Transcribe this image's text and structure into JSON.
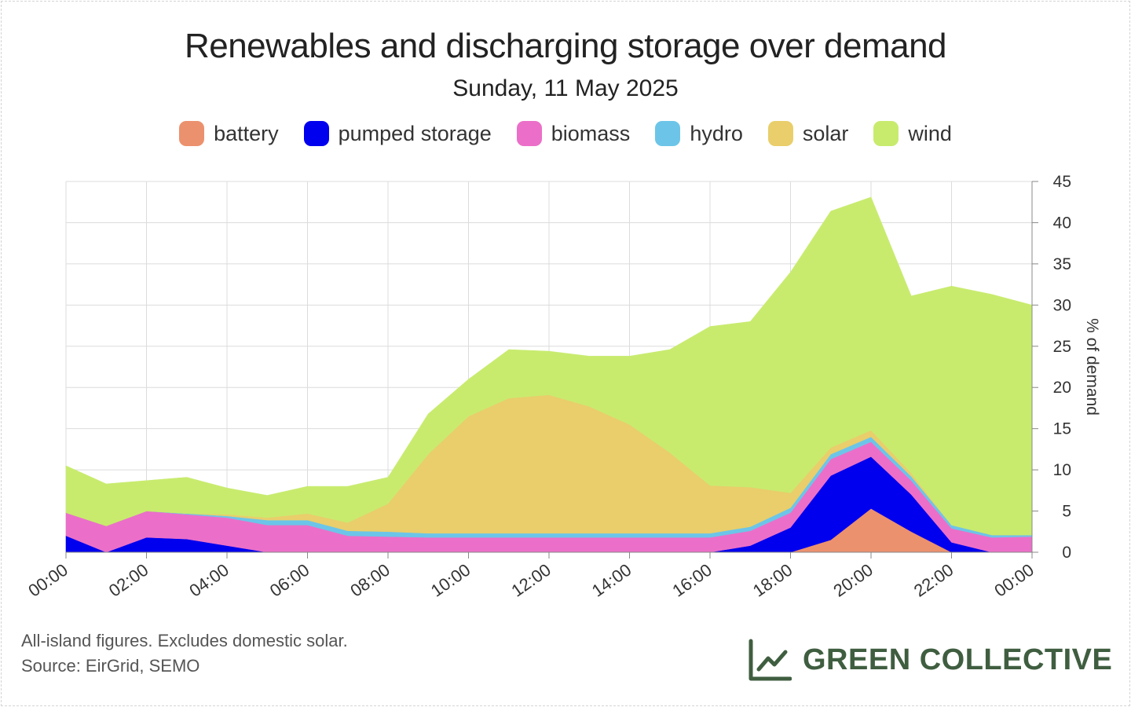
{
  "title": "Renewables and discharging storage over demand",
  "subtitle": "Sunday, 11 May 2025",
  "footnote_line1": "All-island figures. Excludes domestic solar.",
  "footnote_line2": "Source: EirGrid, SEMO",
  "brand": "GREEN COLLECTIVE",
  "chart_data": {
    "type": "area",
    "stacked": true,
    "title": "Renewables and discharging storage over demand",
    "subtitle": "Sunday, 11 May 2025",
    "xlabel": "",
    "ylabel": "% of demand",
    "y_axis_position": "right",
    "ylim": [
      0,
      45
    ],
    "y_ticks": [
      "0",
      "5",
      "10",
      "15",
      "20",
      "25",
      "30",
      "35",
      "40",
      "45"
    ],
    "x_ticks": [
      "00:00",
      "02:00",
      "04:00",
      "06:00",
      "08:00",
      "10:00",
      "12:00",
      "14:00",
      "16:00",
      "18:00",
      "20:00",
      "22:00",
      "00:00"
    ],
    "grid": true,
    "legend_position": "top",
    "x": [
      "00:00",
      "01:00",
      "02:00",
      "03:00",
      "04:00",
      "05:00",
      "06:00",
      "07:00",
      "08:00",
      "09:00",
      "10:00",
      "11:00",
      "12:00",
      "13:00",
      "14:00",
      "15:00",
      "16:00",
      "17:00",
      "18:00",
      "19:00",
      "20:00",
      "21:00",
      "22:00",
      "23:00",
      "24:00"
    ],
    "series": [
      {
        "name": "battery",
        "color": "#ec916e",
        "values": [
          0,
          0,
          0,
          0,
          0,
          0,
          0,
          0,
          0,
          0,
          0,
          0,
          0,
          0,
          0,
          0,
          0,
          0,
          0,
          1.5,
          5.3,
          2.5,
          0,
          0,
          0
        ]
      },
      {
        "name": "pumped storage",
        "color": "#0000ee",
        "values": [
          2,
          0,
          1.8,
          1.6,
          0.8,
          0,
          0,
          0,
          0,
          0,
          0,
          0,
          0,
          0,
          0,
          0,
          0,
          0.8,
          3,
          7.8,
          6.3,
          4.5,
          1.2,
          0,
          0
        ]
      },
      {
        "name": "biomass",
        "color": "#eb6fc8",
        "values": [
          2.8,
          3.2,
          3.2,
          3,
          3.4,
          3.3,
          3.3,
          2,
          1.9,
          1.8,
          1.8,
          1.8,
          1.8,
          1.8,
          1.8,
          1.8,
          1.8,
          1.8,
          1.8,
          2,
          1.8,
          1.7,
          1.7,
          1.8,
          1.9
        ]
      },
      {
        "name": "hydro",
        "color": "#6cc5e8",
        "values": [
          0,
          0,
          0,
          0.1,
          0.2,
          0.6,
          0.6,
          0.6,
          0.6,
          0.5,
          0.5,
          0.5,
          0.5,
          0.5,
          0.5,
          0.5,
          0.5,
          0.5,
          0.6,
          0.6,
          0.6,
          0.5,
          0.4,
          0.3,
          0.2
        ]
      },
      {
        "name": "solar",
        "color": "#e9ce6b",
        "values": [
          0,
          0,
          0,
          0,
          0.2,
          0.3,
          0.8,
          1,
          3.4,
          9.6,
          14.2,
          16.4,
          16.8,
          15.4,
          13.2,
          9.8,
          5.8,
          4.8,
          1.8,
          0.8,
          0.8,
          0.4,
          0,
          0,
          0
        ]
      },
      {
        "name": "wind",
        "color": "#c8eb6e",
        "values": [
          5.7,
          5.1,
          3.7,
          4.4,
          3.2,
          2.7,
          3.3,
          4.4,
          3.2,
          4.9,
          4.5,
          5.9,
          5.3,
          6.1,
          8.3,
          12.5,
          19.3,
          20.1,
          26.8,
          28.7,
          28.3,
          21.5,
          29,
          29.2,
          27.9
        ]
      }
    ]
  }
}
